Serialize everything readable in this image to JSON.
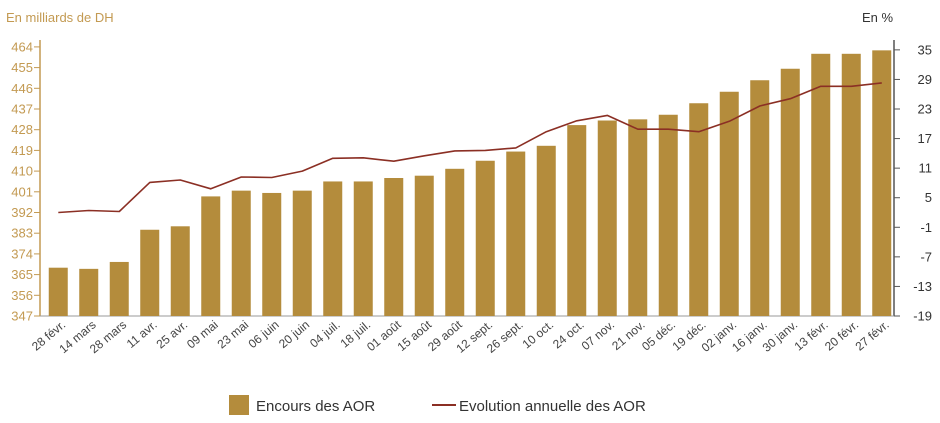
{
  "chart_data": {
    "type": "bar",
    "left_axis_label": "En milliards de DH",
    "right_axis_label": "En %",
    "categories": [
      "28 févr.",
      "14 mars",
      "28 mars",
      "11 avr.",
      "25 avr.",
      "09 mai",
      "23 mai",
      "06 juin",
      "20 juin",
      "04 juil.",
      "18 juil.",
      "01 août",
      "15 août",
      "29 août",
      "12 sept.",
      "26 sept.",
      "10 oct.",
      "24 oct.",
      "07 nov.",
      "21 nov.",
      "05 déc.",
      "19 déc.",
      "02 janv.",
      "16 janv.",
      "30 janv.",
      "13 févr.",
      "20 févr.",
      "27 févr."
    ],
    "yticks_left": [
      347,
      356,
      365,
      374,
      383,
      392,
      401,
      410,
      419,
      428,
      437,
      446,
      455,
      464
    ],
    "yticks_right": [
      -19,
      -13,
      -7,
      -1,
      5,
      11,
      17,
      23,
      29,
      35
    ],
    "ylim_left": [
      347,
      467
    ],
    "ylim_right": [
      -19,
      37
    ],
    "series": [
      {
        "name": "Encours des AOR",
        "type": "bar",
        "axis": "left",
        "color": "#b48c3c",
        "values": [
          368,
          367.5,
          370.5,
          384.5,
          386,
          399,
          401.5,
          400.5,
          401.5,
          405.5,
          405.5,
          407,
          408,
          411,
          414.5,
          418.5,
          421,
          430,
          432,
          432.5,
          434.5,
          439.5,
          444.5,
          449.5,
          454.5,
          461,
          461,
          462.5
        ]
      },
      {
        "name": "Evolution annuelle des AOR",
        "type": "line",
        "axis": "right",
        "color": "#8b2f24",
        "values": [
          2,
          2.4,
          2.2,
          8.1,
          8.6,
          6.8,
          9.2,
          9.1,
          10.4,
          13,
          13.1,
          12.4,
          13.5,
          14.5,
          14.6,
          15.1,
          18.4,
          20.6,
          21.7,
          18.9,
          18.9,
          18.4,
          20.5,
          23.6,
          25.1,
          27.6,
          27.6,
          28.3
        ]
      }
    ],
    "grid": false,
    "legend_position": "bottom"
  }
}
